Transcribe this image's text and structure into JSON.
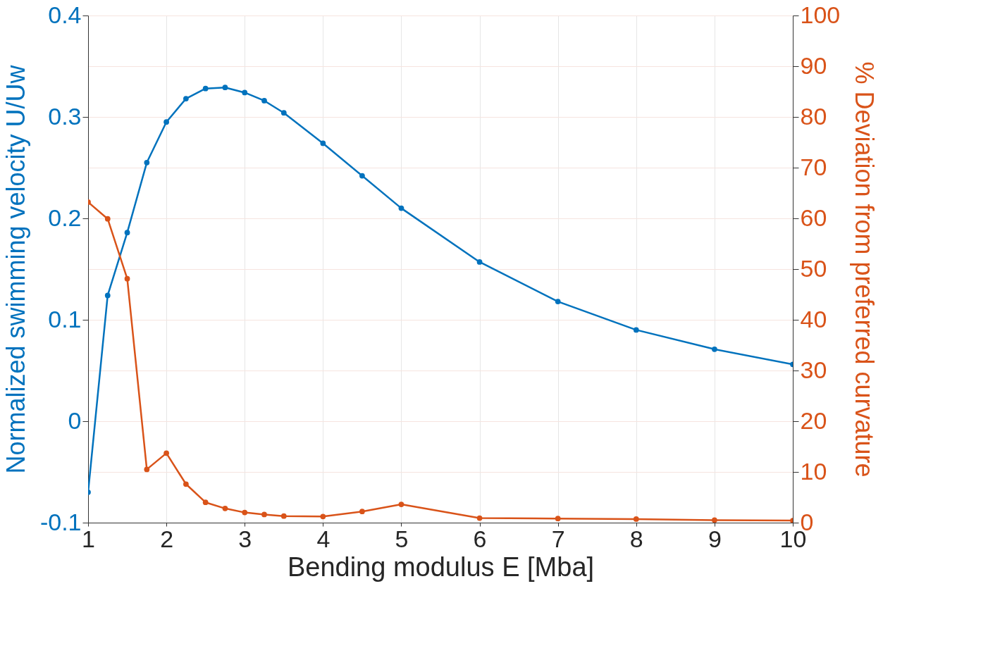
{
  "chart_data": {
    "type": "line",
    "xlabel": "Bending modulus E [Mba]",
    "ylabel": "Normalized swimming velocity U/Uw",
    "y2label": "% Deviation from preferred curvature",
    "x": [
      1,
      1.25,
      1.5,
      1.75,
      2,
      2.25,
      2.5,
      2.75,
      3,
      3.25,
      3.5,
      4,
      4.5,
      5,
      6,
      7,
      8,
      9,
      10
    ],
    "series": [
      {
        "color": "#0072bd",
        "values": [
          -0.07,
          0.124,
          0.186,
          0.255,
          0.295,
          0.318,
          0.328,
          0.329,
          0.324,
          0.316,
          0.304,
          0.274,
          0.242,
          0.21,
          0.157,
          0.118,
          0.09,
          0.071,
          0.056
        ]
      },
      {
        "color": "#d95319",
        "axis": "y2",
        "values": [
          63.2,
          59.9,
          48.1,
          10.5,
          13.7,
          7.6,
          4.0,
          2.8,
          2.0,
          1.6,
          1.3,
          1.2,
          2.2,
          3.6,
          0.9,
          0.8,
          0.7,
          0.5,
          0.4
        ]
      }
    ],
    "xlim": [
      1,
      10
    ],
    "xticks": [
      1,
      2,
      3,
      4,
      5,
      6,
      7,
      8,
      9,
      10
    ],
    "ylim": [
      -0.1,
      0.4
    ],
    "yticks": [
      -0.1,
      0,
      0.1,
      0.2,
      0.3,
      0.4
    ],
    "y2lim": [
      0,
      100
    ],
    "y2ticks": [
      0,
      10,
      20,
      30,
      40,
      50,
      60,
      70,
      80,
      90,
      100
    ],
    "grid": true,
    "marker": "circle",
    "line_style": "solid"
  }
}
